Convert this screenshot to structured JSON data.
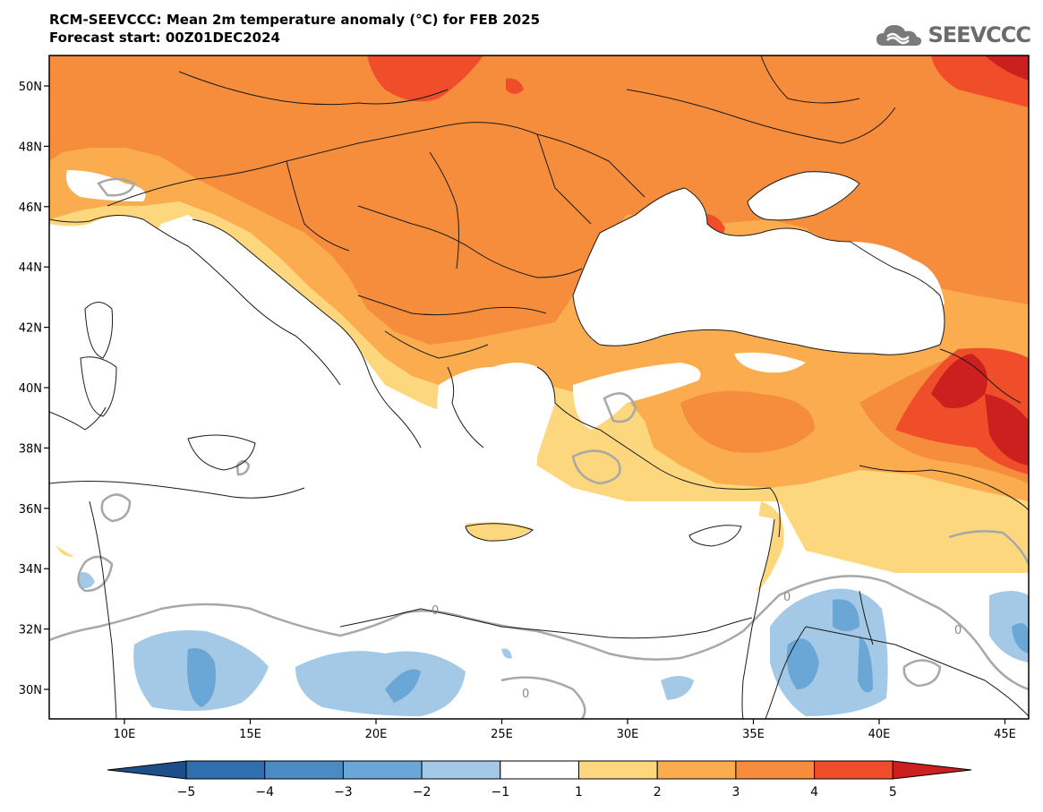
{
  "header": {
    "title": "RCM-SEEVCCC: Mean 2m temperature anomaly (°C) for FEB 2025",
    "subtitle": "Forecast start: 00Z01DEC2024"
  },
  "logo": {
    "text": "SEEVCCC",
    "icon": "cloud-logo-icon"
  },
  "map": {
    "lat_labels": [
      "50N",
      "48N",
      "46N",
      "44N",
      "42N",
      "40N",
      "38N",
      "36N",
      "34N",
      "32N",
      "30N"
    ],
    "lon_labels": [
      "10E",
      "15E",
      "20E",
      "25E",
      "30E",
      "35E",
      "40E",
      "45E"
    ],
    "contour_labels": [
      "0",
      "0",
      "0",
      "0"
    ]
  },
  "colorbar": {
    "tick_labels": [
      "−5",
      "−4",
      "−3",
      "−2",
      "−1",
      "1",
      "2",
      "3",
      "4",
      "5"
    ],
    "colors": [
      "#1e4e8a",
      "#2f6fae",
      "#4a8bc4",
      "#6aa6d6",
      "#a3c9e6",
      "#ffffff",
      "#fdd77e",
      "#fbac4f",
      "#f68d3c",
      "#f04e2a",
      "#cc1f1f"
    ]
  }
}
